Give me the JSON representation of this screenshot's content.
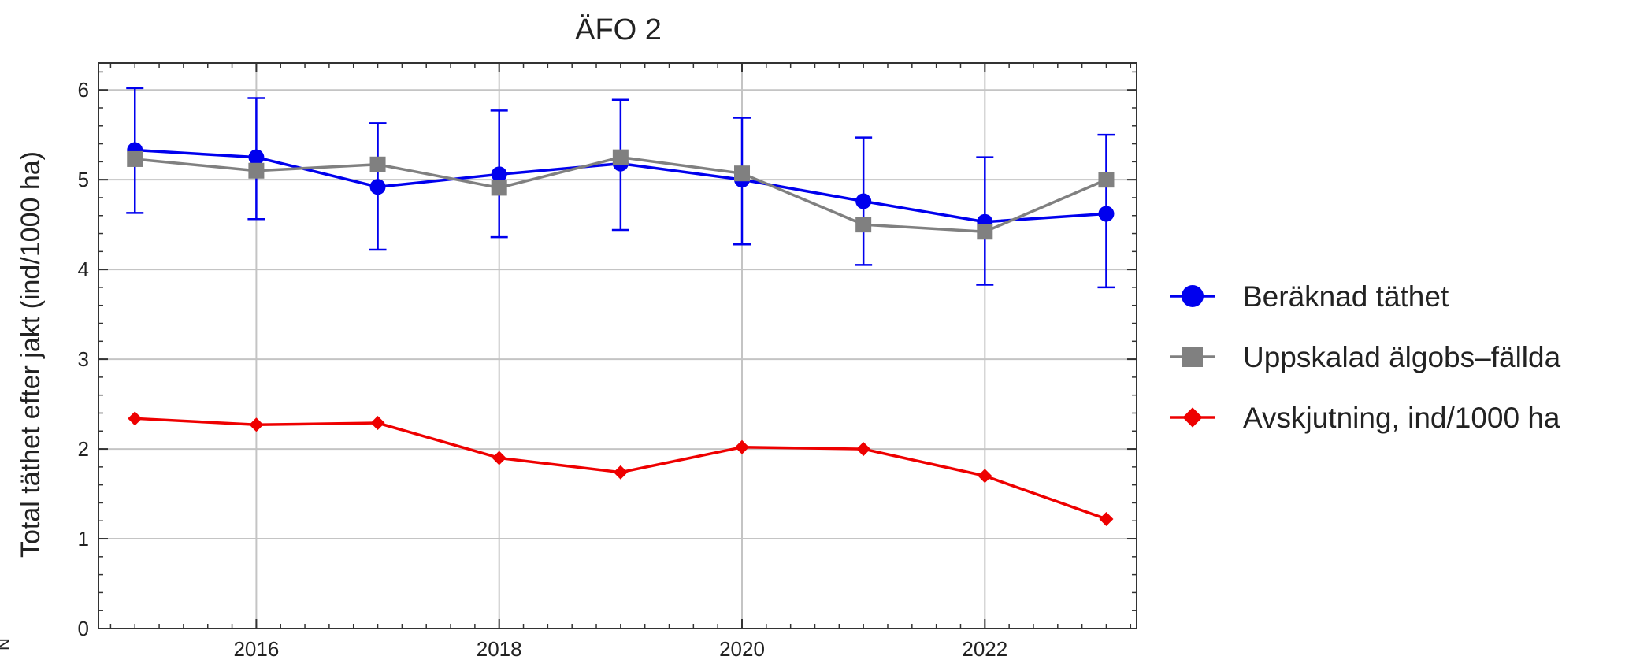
{
  "chart_data": {
    "type": "line",
    "title": "ÄFO 2",
    "xlabel": "",
    "ylabel": "Total täthet efter jakt (ind/1000 ha)",
    "x": [
      2015,
      2016,
      2017,
      2018,
      2019,
      2020,
      2021,
      2022,
      2023
    ],
    "xlim": [
      2014.7,
      2023.25
    ],
    "ylim": [
      0,
      6.3
    ],
    "x_ticks": [
      2016,
      2018,
      2020,
      2022
    ],
    "x_tick_labels": [
      "2016",
      "2018",
      "2020",
      "2022"
    ],
    "y_ticks": [
      0,
      1,
      2,
      3,
      4,
      5,
      6
    ],
    "y_tick_labels": [
      "0",
      "1",
      "2",
      "3",
      "4",
      "5",
      "6"
    ],
    "grid": true,
    "legend_position": "right",
    "corner_text": "N",
    "series": [
      {
        "name": "Beräknad täthet",
        "color": "#0000ee",
        "marker": "circle",
        "values": [
          5.33,
          5.25,
          4.92,
          5.06,
          5.18,
          5.0,
          4.76,
          4.53,
          4.62
        ],
        "error_low": [
          4.63,
          4.56,
          4.22,
          4.36,
          4.44,
          4.28,
          4.05,
          3.83,
          3.8
        ],
        "error_high": [
          6.02,
          5.91,
          5.63,
          5.77,
          5.89,
          5.69,
          5.47,
          5.25,
          5.5
        ]
      },
      {
        "name": "Uppskalad älgobs–fällda",
        "color": "#808080",
        "marker": "square",
        "values": [
          5.23,
          5.1,
          5.17,
          4.91,
          5.25,
          5.07,
          4.5,
          4.42,
          5.0
        ]
      },
      {
        "name": "Avskjutning, ind/1000 ha",
        "color": "#ee0000",
        "marker": "diamond",
        "values": [
          2.34,
          2.27,
          2.29,
          1.9,
          1.74,
          2.02,
          2.0,
          1.7,
          1.22
        ]
      }
    ]
  }
}
